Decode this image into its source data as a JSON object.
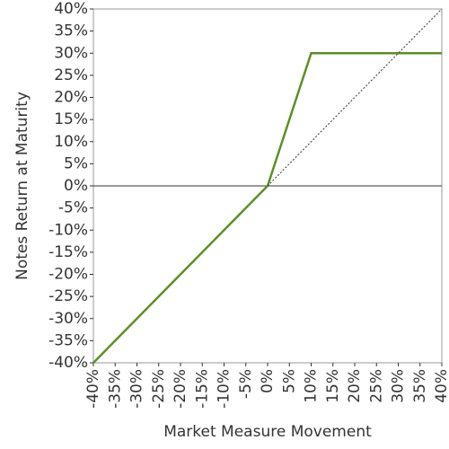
{
  "chart_data": {
    "type": "line",
    "xlabel": "Market Measure Movement",
    "ylabel": "Notes Return at Maturity",
    "xlim": [
      -40,
      40
    ],
    "ylim": [
      -40,
      40
    ],
    "xticks": [
      {
        "value": -40,
        "label": "-40%"
      },
      {
        "value": -35,
        "label": "-35%"
      },
      {
        "value": -30,
        "label": "-30%"
      },
      {
        "value": -25,
        "label": "-25%"
      },
      {
        "value": -20,
        "label": "-20%"
      },
      {
        "value": -15,
        "label": "-15%"
      },
      {
        "value": -10,
        "label": "-10%"
      },
      {
        "value": -5,
        "label": "-5%"
      },
      {
        "value": 0,
        "label": "0%"
      },
      {
        "value": 5,
        "label": "5%"
      },
      {
        "value": 10,
        "label": "10%"
      },
      {
        "value": 15,
        "label": "15%"
      },
      {
        "value": 20,
        "label": "20%"
      },
      {
        "value": 25,
        "label": "25%"
      },
      {
        "value": 30,
        "label": "30%"
      },
      {
        "value": 35,
        "label": "35%"
      },
      {
        "value": 40,
        "label": "40%"
      }
    ],
    "yticks": [
      {
        "value": -40,
        "label": "-40%"
      },
      {
        "value": -35,
        "label": "-35%"
      },
      {
        "value": -30,
        "label": "-30%"
      },
      {
        "value": -25,
        "label": "-25%"
      },
      {
        "value": -20,
        "label": "-20%"
      },
      {
        "value": -15,
        "label": "-15%"
      },
      {
        "value": -10,
        "label": "-10%"
      },
      {
        "value": -5,
        "label": "-5%"
      },
      {
        "value": 0,
        "label": "0%"
      },
      {
        "value": 5,
        "label": "5%"
      },
      {
        "value": 10,
        "label": "10%"
      },
      {
        "value": 15,
        "label": "15%"
      },
      {
        "value": 20,
        "label": "20%"
      },
      {
        "value": 25,
        "label": "25%"
      },
      {
        "value": 30,
        "label": "30%"
      },
      {
        "value": 35,
        "label": "35%"
      },
      {
        "value": 40,
        "label": "40%"
      }
    ],
    "series": [
      {
        "color": "#5b8f2a",
        "style": "solid",
        "x": [
          -40,
          0,
          10,
          40
        ],
        "values": [
          -40,
          0,
          30,
          30
        ]
      },
      {
        "color": "#333333",
        "style": "dotted",
        "x": [
          0,
          40
        ],
        "values": [
          0,
          40
        ]
      }
    ]
  }
}
